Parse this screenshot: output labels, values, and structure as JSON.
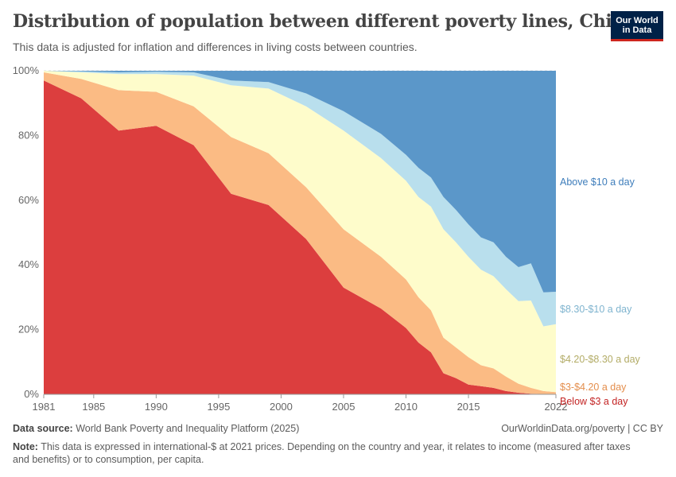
{
  "header": {
    "title": "Distribution of population between different poverty lines, China",
    "subtitle": "This data is adjusted for inflation and differences in living costs between countries.",
    "logo_line1": "Our World",
    "logo_line2": "in Data"
  },
  "footer": {
    "source_label": "Data source:",
    "source_text": "World Bank Poverty and Inequality Platform (2025)",
    "url_text": "OurWorldinData.org/poverty | CC BY",
    "note_label": "Note:",
    "note_text": "This data is expressed in international-$ at 2021 prices. Depending on the country and year, it relates to income (measured after taxes and benefits) or to consumption, per capita."
  },
  "chart_data": {
    "type": "area",
    "stacked": true,
    "x": [
      1981,
      1984,
      1987,
      1990,
      1993,
      1996,
      1999,
      2002,
      2005,
      2008,
      2010,
      2011,
      2012,
      2013,
      2014,
      2015,
      2016,
      2017,
      2018,
      2019,
      2020,
      2021,
      2022
    ],
    "ylim": [
      0,
      100
    ],
    "yticks": [
      "0%",
      "20%",
      "40%",
      "60%",
      "80%",
      "100%"
    ],
    "xticks": [
      "1981",
      "1985",
      "1990",
      "1995",
      "2000",
      "2005",
      "2010",
      "2015",
      "2022"
    ],
    "grid": "horizontal",
    "legend": "right-labels",
    "series": [
      {
        "name": "Below $3 a day",
        "color": "#dc3e3e",
        "values": [
          97,
          91.5,
          81.5,
          83,
          77,
          62,
          58.5,
          48,
          33,
          26.5,
          20.5,
          16,
          13,
          6.5,
          5,
          3,
          2.5,
          2,
          1,
          0.5,
          0.2,
          0.1,
          0.1
        ]
      },
      {
        "name": "$3-$4.20 a day",
        "color": "#fbbb84",
        "values": [
          2.5,
          6,
          12.5,
          10.5,
          12,
          17.5,
          16,
          16,
          18,
          16,
          15,
          14,
          13,
          11,
          9.5,
          8.5,
          6.5,
          6,
          4.5,
          2.8,
          1.8,
          0.9,
          0.6
        ]
      },
      {
        "name": "$4.20-$8.30 a day",
        "color": "#fefccb",
        "values": [
          0.5,
          2,
          5,
          5.5,
          9.5,
          16,
          20,
          25,
          30.5,
          30.5,
          30.5,
          31,
          32,
          33.5,
          32.5,
          31,
          29.5,
          28.5,
          27,
          25.5,
          27,
          20,
          21
        ]
      },
      {
        "name": "$8.30-$10 a day",
        "color": "#b9dfed",
        "values": [
          0,
          0.3,
          0.5,
          0.7,
          1,
          1.5,
          2,
          4,
          6,
          7.5,
          8,
          9,
          9,
          10,
          10,
          10,
          10,
          10.5,
          10,
          10.5,
          11.5,
          10.5,
          10
        ]
      },
      {
        "name": "Above $10 a day",
        "color": "#5b97c9",
        "values": [
          0,
          0.2,
          0.5,
          0.3,
          0.5,
          3,
          3.5,
          7,
          12.5,
          19.5,
          26,
          30,
          33,
          39,
          43,
          47.5,
          51.5,
          53,
          57.5,
          60.7,
          59.5,
          68.5,
          68.3
        ]
      }
    ],
    "labels": [
      {
        "text": "Above $10 a day",
        "color": "#3e7dbb"
      },
      {
        "text": "$8.30-$10 a day",
        "color": "#7fb4cf"
      },
      {
        "text": "$4.20-$8.30 a day",
        "color": "#b3ac67"
      },
      {
        "text": "$3-$4.20 a day",
        "color": "#e48e4c"
      },
      {
        "text": "Below $3 a day",
        "color": "#c32424"
      }
    ]
  }
}
